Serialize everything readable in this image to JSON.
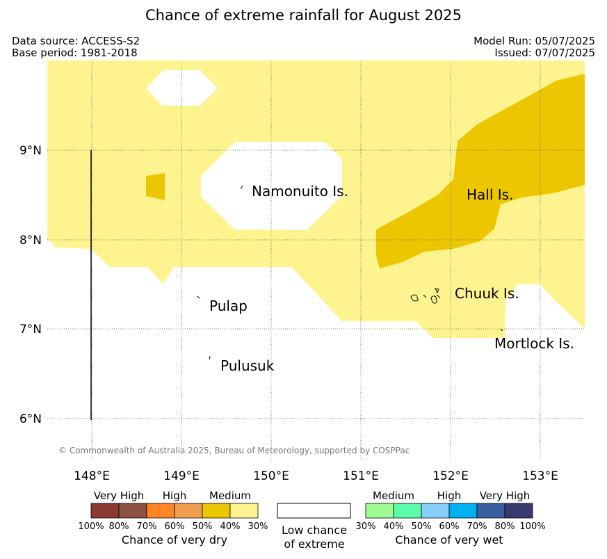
{
  "title": "Chance of extreme rainfall for August 2025",
  "data_source": "Data source: ACCESS-S2",
  "base_period": "Base period: 1981-2018",
  "model_run": "Model Run: 05/07/2025",
  "issued": "Issued: 07/07/2025",
  "copyright": "© Commonwealth of Australia 2025, Bureau of Meteorology, supported by COSPPac",
  "map": {
    "lon_range": [
      147.5,
      153.5
    ],
    "lat_range": [
      5.5,
      9.9
    ],
    "lon_ticks": [
      "148°E",
      "149°E",
      "150°E",
      "151°E",
      "152°E",
      "153°E"
    ],
    "lat_ticks": [
      "6°N",
      "7°N",
      "8°N",
      "9°N"
    ],
    "place_labels": [
      "Namonuito Is.",
      "Hall Is.",
      "Pulap",
      "Chuuk Is.",
      "Pulusuk",
      "Mortlock Is."
    ],
    "colors": {
      "dry_30_40": "#fdf48f",
      "dry_40_50": "#ecc600"
    }
  },
  "legend": {
    "dry": {
      "categories": [
        "Very High",
        "High",
        "Medium"
      ],
      "percentages": [
        "100%",
        "80%",
        "70%",
        "60%",
        "50%",
        "40%",
        "30%"
      ],
      "colors": [
        "#8b3a32",
        "#8b5240",
        "#ff8426",
        "#ef9f4e",
        "#ecc600",
        "#fdf48f"
      ],
      "caption": "Chance of very dry"
    },
    "neutral": {
      "caption_line1": "Low chance",
      "caption_line2": "of extreme",
      "color": "#ffffff"
    },
    "wet": {
      "categories": [
        "Medium",
        "High",
        "Very High"
      ],
      "percentages": [
        "30%",
        "40%",
        "50%",
        "60%",
        "70%",
        "80%",
        "100%"
      ],
      "colors": [
        "#9ffc95",
        "#58fca9",
        "#87cefa",
        "#00b0f0",
        "#3a5fa0",
        "#3b3a70"
      ],
      "caption": "Chance of very wet"
    }
  }
}
